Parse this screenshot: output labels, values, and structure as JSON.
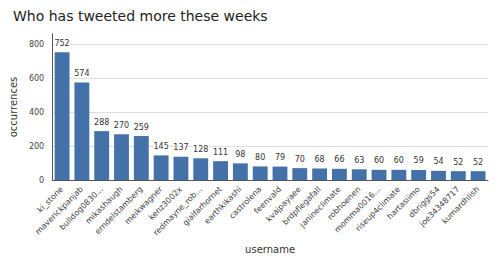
{
  "chart_data": {
    "type": "bar",
    "title": "Who has tweeted more these weeks",
    "xlabel": "username",
    "ylabel": "occurrences",
    "categories": [
      "ki_stone",
      "maverickpanjab",
      "bulldog0830...",
      "mikashaugh",
      "erndelstamberg",
      "meikwagner",
      "kenz3002x",
      "redmayne_rob...",
      "gialfarhornet",
      "earthkikashi",
      "castrolena",
      "feenvald",
      "kvajpayaee",
      "brdpflegafall",
      "janineclimate",
      "robhoenen",
      "momma0016...",
      "riseup4climate",
      "hartasiimo",
      "dbriggs54",
      "joe34348717",
      "kumardhlish"
    ],
    "values": [
      752,
      574,
      288,
      270,
      259,
      145,
      137,
      128,
      111,
      98,
      80,
      79,
      70,
      68,
      66,
      63,
      60,
      60,
      59,
      54,
      52,
      52
    ],
    "color": "#4472a8",
    "ylim": [
      0,
      860
    ],
    "yticks": [
      0,
      200,
      400,
      600,
      800
    ],
    "grid": true,
    "data_labels": true
  }
}
